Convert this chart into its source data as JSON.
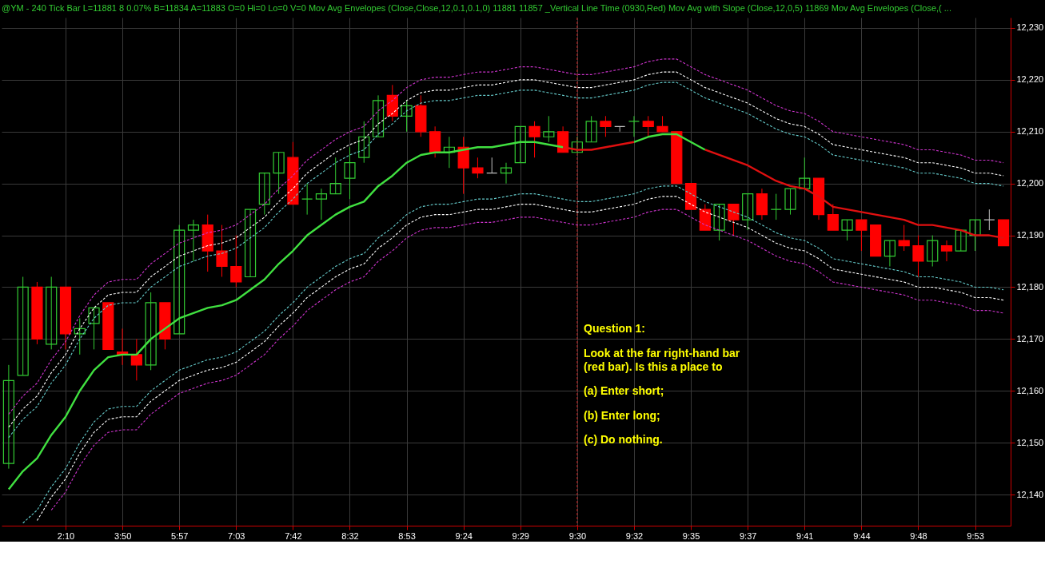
{
  "chart_data": {
    "type": "candlestick",
    "title": "@YM - 240 Tick Bar  L=11881  8  0.07%  B=11834  A=11883  O=0  Hi=0  Lo=0  V=0  Mov Avg Envelopes (Close,Close,12,0.1,0.1,0)  11881  11857  _Vertical Line Time (0930,Red)  Mov Avg with Slope (Close,12,0,5)  11869  Mov Avg Envelopes (Close,( ...",
    "categories": [
      null,
      null,
      null,
      null,
      "2:10",
      null,
      null,
      null,
      "3:50",
      null,
      null,
      null,
      "5:57",
      null,
      null,
      null,
      "7:03",
      null,
      null,
      null,
      "7:42",
      null,
      null,
      null,
      "8:32",
      null,
      null,
      null,
      "8:53",
      null,
      null,
      null,
      "9:24",
      null,
      null,
      null,
      "9:29",
      null,
      null,
      null,
      "9:30",
      null,
      null,
      null,
      "9:32",
      null,
      null,
      null,
      "9:35",
      null,
      null,
      null,
      "9:37",
      null,
      null,
      null,
      "9:41",
      null,
      null,
      null,
      "9:44",
      null,
      null,
      null,
      "9:48",
      null,
      null,
      null,
      "9:53",
      null,
      null
    ],
    "ohlc": [
      [
        12146,
        12165,
        12145,
        12162
      ],
      [
        12163,
        12182,
        12163,
        12180
      ],
      [
        12180,
        12181,
        12169,
        12170
      ],
      [
        12169,
        12182,
        12168,
        12180
      ],
      [
        12180,
        12180,
        12168,
        12171
      ],
      [
        12171,
        12174,
        12167,
        12172
      ],
      [
        12173,
        12176,
        12168,
        12176
      ],
      [
        12177,
        12177,
        12168,
        12168
      ],
      [
        12167.5,
        12172,
        12165,
        12167
      ],
      [
        12167,
        12170,
        12162,
        12165
      ],
      [
        12165,
        12179,
        12164,
        12177
      ],
      [
        12177,
        12177,
        12168,
        12170
      ],
      [
        12171,
        12192,
        12171,
        12191
      ],
      [
        12191,
        12193,
        12185,
        12192
      ],
      [
        12192,
        12194,
        12183,
        12187
      ],
      [
        12187,
        12192,
        12182,
        12184
      ],
      [
        12184,
        12190,
        12180,
        12181
      ],
      [
        12182,
        12195,
        12182,
        12195
      ],
      [
        12196,
        12202,
        12194,
        12202
      ],
      [
        12202,
        12206,
        12198,
        12206
      ],
      [
        12205,
        12208,
        12196,
        12196
      ],
      [
        12197,
        12200,
        12194,
        12197
      ],
      [
        12197,
        12199,
        12193,
        12198
      ],
      [
        12198,
        12205,
        12198,
        12200
      ],
      [
        12201,
        12207,
        12197,
        12204
      ],
      [
        12205,
        12212,
        12204,
        12209
      ],
      [
        12209,
        12217,
        12209,
        12216
      ],
      [
        12217,
        12219,
        12212,
        12213
      ],
      [
        12213,
        12216,
        12210,
        12215
      ],
      [
        12215,
        12217,
        12209,
        12210
      ],
      [
        12210,
        12211,
        12205,
        12206
      ],
      [
        12206,
        12209,
        12203,
        12207
      ],
      [
        12207,
        12209,
        12198,
        12203
      ],
      [
        12203,
        12205,
        12201,
        12202
      ],
      [
        12202,
        12205,
        12202,
        12202
      ],
      [
        12202,
        12204,
        12200,
        12203
      ],
      [
        12204,
        12211,
        12204,
        12211
      ],
      [
        12211,
        12212,
        12205,
        12209
      ],
      [
        12209,
        12213,
        12208,
        12210
      ],
      [
        12210,
        12211,
        12206,
        12206
      ],
      [
        12206,
        12209,
        12206,
        12208
      ],
      [
        12208,
        12213,
        12208,
        12212
      ],
      [
        12212,
        12213,
        12209,
        12211
      ],
      [
        12211,
        12211,
        12210,
        12211
      ],
      [
        12212,
        12213,
        12209,
        12212
      ],
      [
        12212,
        12213,
        12209,
        12211
      ],
      [
        12211,
        12213,
        12210,
        12210
      ],
      [
        12210,
        12210,
        12200,
        12200
      ],
      [
        12200,
        12200,
        12195,
        12195
      ],
      [
        12195,
        12196,
        12191,
        12191
      ],
      [
        12191,
        12196,
        12189,
        12196
      ],
      [
        12196,
        12196,
        12190,
        12193
      ],
      [
        12193,
        12198,
        12191,
        12198
      ],
      [
        12198,
        12199,
        12193,
        12194
      ],
      [
        12195,
        12198,
        12193,
        12195
      ],
      [
        12195,
        12199,
        12194,
        12199
      ],
      [
        12199,
        12205,
        12199,
        12201
      ],
      [
        12201,
        12201,
        12193,
        12194
      ],
      [
        12194,
        12196,
        12191,
        12191
      ],
      [
        12191,
        12193,
        12189,
        12193
      ],
      [
        12193,
        12193,
        12187,
        12191
      ],
      [
        12192,
        12192,
        12186,
        12186
      ],
      [
        12186,
        12189,
        12184,
        12189
      ],
      [
        12189,
        12192,
        12187,
        12188
      ],
      [
        12188,
        12190,
        12182,
        12185
      ],
      [
        12185,
        12190,
        12184,
        12189
      ],
      [
        12188,
        12189,
        12185,
        12187
      ],
      [
        12187,
        12191,
        12187,
        12191
      ],
      [
        12190,
        12193,
        12187,
        12193
      ],
      [
        12193,
        12195,
        12191,
        12193
      ],
      [
        12193,
        12193,
        12188,
        12188
      ]
    ],
    "colors": [
      "#33cc33",
      "#33cc33",
      "#ff0000",
      "#33cc33",
      "#ff0000",
      "#33cc33",
      "#33cc33",
      "#ff0000",
      "#ff0000",
      "#ff0000",
      "#33cc33",
      "#ff0000",
      "#33cc33",
      "#33cc33",
      "#ff0000",
      "#ff0000",
      "#ff0000",
      "#33cc33",
      "#33cc33",
      "#33cc33",
      "#ff0000",
      "#33cc33",
      "#33cc33",
      "#33cc33",
      "#33cc33",
      "#33cc33",
      "#33cc33",
      "#ff0000",
      "#33cc33",
      "#ff0000",
      "#ff0000",
      "#33cc33",
      "#ff0000",
      "#ff0000",
      "#c0c0c0",
      "#33cc33",
      "#33cc33",
      "#ff0000",
      "#33cc33",
      "#ff0000",
      "#33cc33",
      "#33cc33",
      "#ff0000",
      "#c0c0c0",
      "#33cc33",
      "#ff0000",
      "#ff0000",
      "#ff0000",
      "#ff0000",
      "#ff0000",
      "#33cc33",
      "#ff0000",
      "#33cc33",
      "#ff0000",
      "#33cc33",
      "#33cc33",
      "#33cc33",
      "#ff0000",
      "#ff0000",
      "#33cc33",
      "#ff0000",
      "#ff0000",
      "#33cc33",
      "#ff0000",
      "#ff0000",
      "#33cc33",
      "#ff0000",
      "#33cc33",
      "#33cc33",
      "#c0c0c0",
      "#ff0000"
    ],
    "series": [
      {
        "type": "line",
        "line_style": "dashed",
        "color": "#cc33cc",
        "values": [
          12155.5,
          12159,
          12161.5,
          12166,
          12169.5,
          12174.5,
          12178.5,
          12181,
          12181.5,
          12181.5,
          12184.5,
          12186.5,
          12188.5,
          12189.5,
          12190.5,
          12191,
          12192,
          12194,
          12196,
          12199,
          12201.5,
          12204.5,
          12206.5,
          12208.5,
          12210,
          12211,
          12214,
          12216,
          12218.5,
          12220,
          12220.5,
          12220.5,
          12221,
          12221.5,
          12221.5,
          12222,
          12222.5,
          12222.5,
          12222,
          12221.5,
          12221,
          12221,
          12221.5,
          12222,
          12222.5,
          12223.5,
          12224,
          12224,
          12222.5,
          12221,
          12220,
          12219,
          12218,
          12216.5,
          12215,
          12214,
          12213.5,
          12212,
          12210,
          12209.5,
          12209,
          12208.5,
          12208,
          12207.5,
          12206.5,
          12206.5,
          12206,
          12205.5,
          12204.5,
          12204.5,
          12204
        ]
      },
      {
        "type": "line",
        "line_style": "dashed",
        "color": "#ffffff",
        "values": [
          12153,
          12156.5,
          12159,
          12163.5,
          12167,
          12172,
          12176,
          12178.5,
          12179,
          12179,
          12182,
          12184,
          12186,
          12187,
          12188,
          12188.5,
          12189.5,
          12191.5,
          12193.5,
          12196.5,
          12199,
          12202,
          12204,
          12206,
          12207.5,
          12208.5,
          12211.5,
          12213.5,
          12216,
          12217.5,
          12218,
          12218,
          12218.5,
          12219,
          12219,
          12219.5,
          12220,
          12220,
          12219.5,
          12219,
          12218.5,
          12218.5,
          12219,
          12219.5,
          12220,
          12221,
          12221.5,
          12221.5,
          12220,
          12218.5,
          12217.5,
          12216.5,
          12215.5,
          12214,
          12212.5,
          12211.5,
          12211,
          12209.5,
          12207.5,
          12207,
          12206.5,
          12206,
          12205.5,
          12205,
          12204,
          12204,
          12203.5,
          12203,
          12202,
          12202,
          12201.5
        ]
      },
      {
        "type": "line",
        "line_style": "dashed",
        "color": "#66cccc",
        "values": [
          12151,
          12154.5,
          12157,
          12161.5,
          12165,
          12170,
          12174,
          12176.5,
          12177,
          12177,
          12180,
          12182,
          12184,
          12185,
          12186,
          12186.5,
          12187.5,
          12189.5,
          12191.5,
          12194.5,
          12197,
          12200,
          12202,
          12204,
          12205.5,
          12206.5,
          12209.5,
          12211.5,
          12214,
          12215.5,
          12216,
          12216,
          12216.5,
          12217,
          12217,
          12217.5,
          12218,
          12218,
          12217.5,
          12217,
          12216.5,
          12216.5,
          12217,
          12217.5,
          12218,
          12219,
          12219.5,
          12219.5,
          12218,
          12216.5,
          12215.5,
          12214.5,
          12213.5,
          12212,
          12210.5,
          12209.5,
          12209,
          12207.5,
          12205.5,
          12205,
          12204.5,
          12204,
          12203.5,
          12203,
          12202,
          12202,
          12201.5,
          12201,
          12200,
          12200,
          12199.5
        ]
      },
      {
        "type": "line",
        "line_style": "dashed",
        "color": "#66cccc",
        "values": [
          null,
          12134.5,
          12137,
          12141.5,
          12145,
          12150,
          12154,
          12156.5,
          12157,
          12157,
          12160,
          12162,
          12164,
          12165,
          12166,
          12166.5,
          12167.5,
          12169.5,
          12171.5,
          12174.5,
          12177,
          12180,
          12182,
          12184,
          12185.5,
          12186.5,
          12189.5,
          12191.5,
          12194,
          12195.5,
          12196,
          12196,
          12196.5,
          12197,
          12197,
          12197.5,
          12198,
          12198,
          12197.5,
          12197,
          12196.5,
          12196.5,
          12197,
          12197.5,
          12198,
          12199,
          12199.5,
          12199.5,
          12198,
          12196.5,
          12195.5,
          12194.5,
          12193.5,
          12192,
          12190.5,
          12189.5,
          12189,
          12187.5,
          12185.5,
          12185,
          12184.5,
          12184,
          12183.5,
          12183,
          12182,
          12182,
          12181.5,
          12181,
          12180,
          12180,
          12179.5
        ]
      },
      {
        "type": "line",
        "line_style": "dashed",
        "color": "#ffffff",
        "values": [
          null,
          null,
          12135,
          12139.5,
          12143,
          12148,
          12152,
          12154.5,
          12155,
          12155,
          12158,
          12160,
          12162,
          12163,
          12164,
          12164.5,
          12165.5,
          12167.5,
          12169.5,
          12172.5,
          12175,
          12178,
          12180,
          12182,
          12183.5,
          12184.5,
          12187.5,
          12189.5,
          12192,
          12193.5,
          12194,
          12194,
          12194.5,
          12195,
          12195,
          12195.5,
          12196,
          12196,
          12195.5,
          12195,
          12194.5,
          12194.5,
          12195,
          12195.5,
          12196,
          12197,
          12197.5,
          12197.5,
          12196,
          12194.5,
          12193.5,
          12192.5,
          12191.5,
          12190,
          12188.5,
          12187.5,
          12187,
          12185.5,
          12183.5,
          12183,
          12182.5,
          12182,
          12181.5,
          12181,
          12180,
          12180,
          12179.5,
          12179,
          12178,
          12178,
          12177.5
        ]
      },
      {
        "type": "line",
        "line_style": "dashed",
        "color": "#cc33cc",
        "values": [
          null,
          null,
          null,
          12137,
          12140.5,
          12145.5,
          12149.5,
          12152,
          12152.5,
          12152.5,
          12155.5,
          12157.5,
          12159.5,
          12160.5,
          12161.5,
          12162,
          12163,
          12165,
          12167,
          12170,
          12172.5,
          12175.5,
          12177.5,
          12179.5,
          12181,
          12182,
          12185,
          12187,
          12189.5,
          12191,
          12191.5,
          12191.5,
          12192,
          12192.5,
          12192.5,
          12193,
          12193.5,
          12193.5,
          12193,
          12192.5,
          12192,
          12192,
          12192.5,
          12193,
          12193.5,
          12194.5,
          12195,
          12195,
          12193.5,
          12192,
          12191,
          12190,
          12189,
          12187.5,
          12186,
          12185,
          12184.5,
          12183,
          12181,
          12180.5,
          12180,
          12179.5,
          12179,
          12178.5,
          12177.5,
          12177.5,
          12177,
          12176.5,
          12175.5,
          12175.5,
          12175
        ]
      },
      {
        "type": "line",
        "line_style": "solid",
        "color": "#40e040",
        "values": [
          12141,
          12144.5,
          12147,
          12151.5,
          12155,
          12160,
          12164,
          12166.5,
          12167,
          12167,
          12170,
          12172,
          12174,
          12175,
          12176,
          12176.5,
          12177.5,
          12179.5,
          12181.5,
          12184.5,
          12187,
          12190,
          12192,
          12194,
          12195.5,
          12196.5,
          12199.5,
          12201.5,
          12204,
          12205.5,
          12206,
          12206,
          12206.5,
          12207,
          12207,
          12207.5,
          12208,
          12208,
          12207.5,
          12207,
          null,
          null,
          null,
          null,
          12208,
          12209,
          12209.5,
          12209.5,
          12208,
          12206.5,
          null,
          null,
          null,
          null,
          null,
          null,
          null,
          null,
          null,
          null,
          null,
          null,
          null,
          null,
          null,
          null,
          null,
          null,
          null,
          null,
          null
        ]
      },
      {
        "type": "line",
        "line_style": "solid",
        "color": "#e01010",
        "values": [
          null,
          null,
          null,
          null,
          null,
          null,
          null,
          null,
          null,
          null,
          null,
          null,
          null,
          null,
          null,
          null,
          null,
          null,
          null,
          null,
          null,
          null,
          null,
          null,
          null,
          null,
          null,
          null,
          null,
          null,
          null,
          null,
          null,
          null,
          null,
          null,
          null,
          null,
          null,
          12207,
          12206.5,
          12206.5,
          12207,
          12207.5,
          12208,
          null,
          null,
          null,
          null,
          12206.5,
          12205.5,
          12204.5,
          12203.5,
          12202,
          12200.5,
          12199.5,
          12199,
          12197.5,
          12195.5,
          12195,
          12194.5,
          12194,
          12193.5,
          12193,
          12192,
          12192,
          12191.5,
          12191,
          12190,
          12190,
          12189.5
        ]
      }
    ],
    "ylim": [
      12134,
      12232
    ],
    "yticks": [
      {
        "value": 12140,
        "label": "12,140"
      },
      {
        "value": 12150,
        "label": "12,150"
      },
      {
        "value": 12160,
        "label": "12,160"
      },
      {
        "value": 12170,
        "label": "12,170"
      },
      {
        "value": 12180,
        "label": "12,180"
      },
      {
        "value": 12190,
        "label": "12,190"
      },
      {
        "value": 12200,
        "label": "12,200"
      },
      {
        "value": 12210,
        "label": "12,210"
      },
      {
        "value": 12220,
        "label": "12,220"
      },
      {
        "value": 12230,
        "label": "12,230"
      }
    ],
    "grid": true,
    "ref_lines": [
      {
        "axis": "x",
        "value": "9:30",
        "color": "#cc2222",
        "line_style": "dashed"
      }
    ],
    "annotations": [
      "Question 1:",
      "Look at the far right-hand bar",
      "(red bar). Is this a place to",
      "(a) Enter short;",
      "(b) Enter long;",
      "(c) Do nothing."
    ]
  }
}
